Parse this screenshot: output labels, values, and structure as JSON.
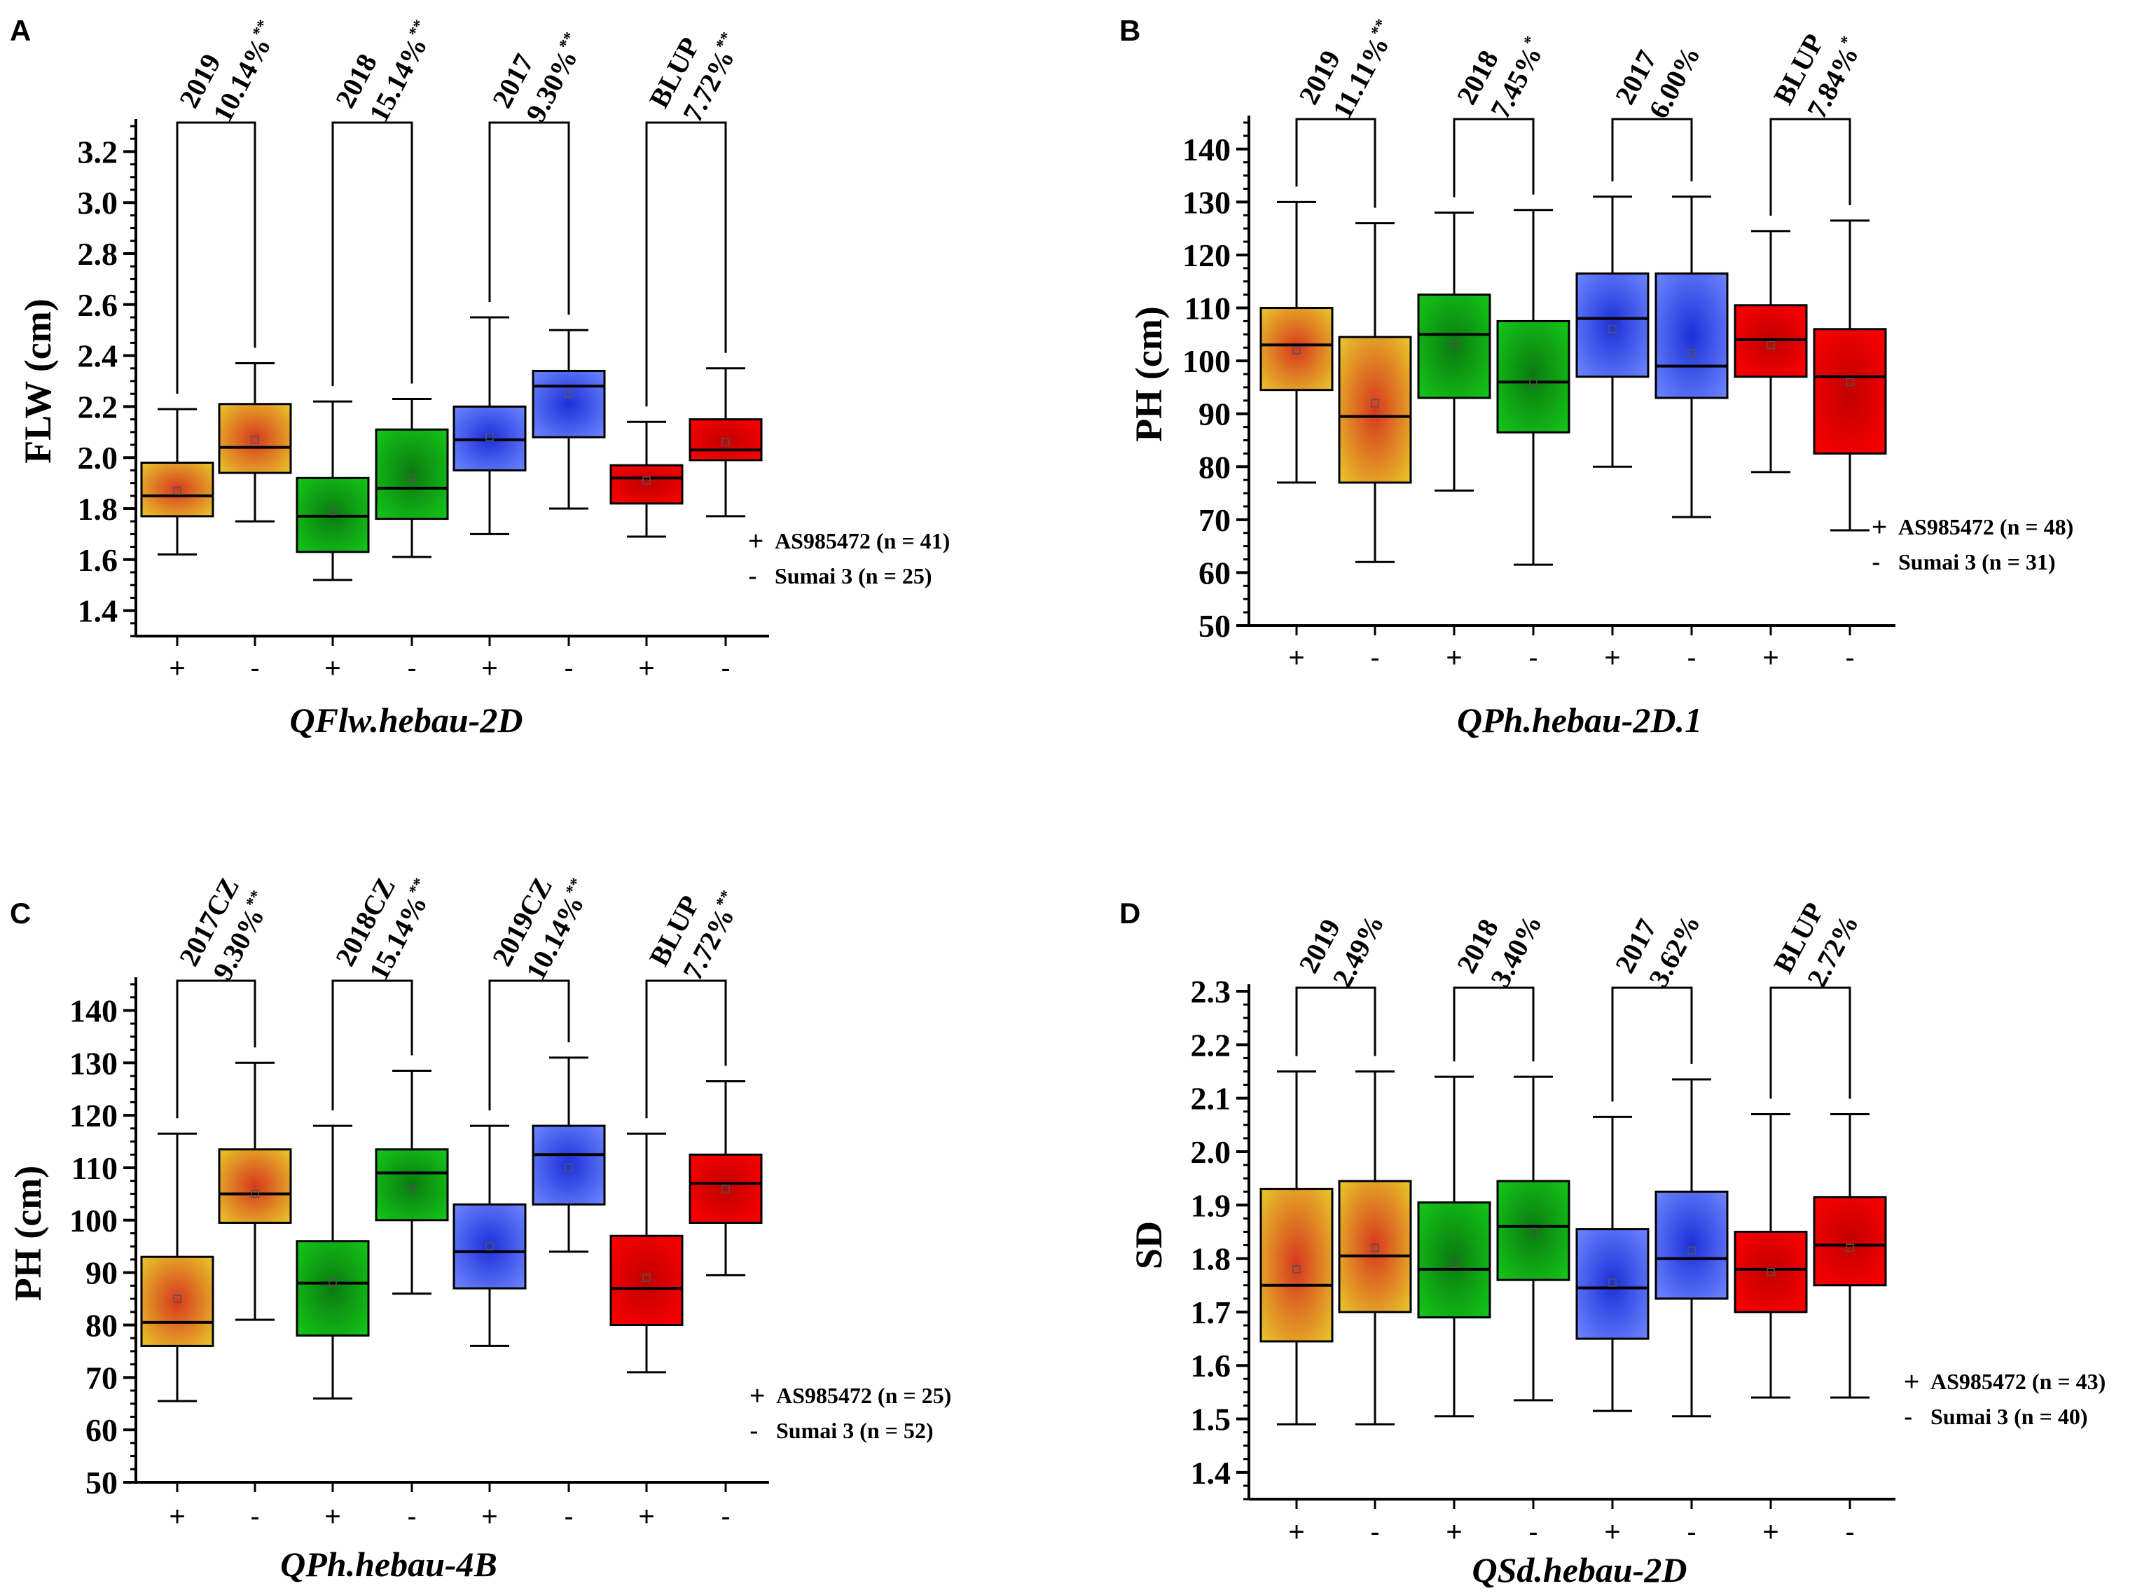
{
  "colors": {
    "yellow_edge": "#e8c92a",
    "yellow_center": "#d7381e",
    "green_edge": "#14c818",
    "green_center": "#0a7a10",
    "blue_edge": "#6f86ff",
    "blue_center": "#1c30d8",
    "red_edge": "#ff0000",
    "red_center": "#c00000"
  },
  "chart_data": [
    {
      "panel": "A",
      "type": "box",
      "ylabel": "FLW (cm)",
      "xlabel": "QFlw.hebau-2D",
      "ylim": [
        1.3,
        3.3
      ],
      "ytick_values": [
        1.4,
        1.6,
        1.8,
        2.0,
        2.2,
        2.4,
        2.6,
        2.8,
        3.0,
        3.2
      ],
      "ytick_labels": [
        "1.4",
        "1.6",
        "1.8",
        "2.0",
        "2.2",
        "2.4",
        "2.6",
        "2.8",
        "3.0",
        "3.2"
      ],
      "minor_step": 0.05,
      "categories": [
        "+",
        "-",
        "+",
        "-",
        "+",
        "-",
        "+",
        "-"
      ],
      "groups": [
        {
          "env": "2019",
          "pct": "10.14%",
          "sig": "**",
          "color": "yellow"
        },
        {
          "env": "2018",
          "pct": "15.14%",
          "sig": "**",
          "color": "green"
        },
        {
          "env": "2017",
          "pct": "9.30%",
          "sig": "**",
          "color": "blue"
        },
        {
          "env": "BLUP",
          "pct": "7.72%",
          "sig": "**",
          "color": "red"
        }
      ],
      "boxes": [
        {
          "min": 1.62,
          "q1": 1.77,
          "median": 1.85,
          "q3": 1.98,
          "max": 2.19,
          "mean": 1.87
        },
        {
          "min": 1.75,
          "q1": 1.94,
          "median": 2.04,
          "q3": 2.21,
          "max": 2.37,
          "mean": 2.07
        },
        {
          "min": 1.52,
          "q1": 1.63,
          "median": 1.77,
          "q3": 1.92,
          "max": 2.22,
          "mean": 1.79
        },
        {
          "min": 1.61,
          "q1": 1.76,
          "median": 1.88,
          "q3": 2.11,
          "max": 2.23,
          "mean": 1.92
        },
        {
          "min": 1.7,
          "q1": 1.95,
          "median": 2.07,
          "q3": 2.2,
          "max": 2.55,
          "mean": 2.08
        },
        {
          "min": 1.8,
          "q1": 2.08,
          "median": 2.28,
          "q3": 2.34,
          "max": 2.5,
          "mean": 2.25
        },
        {
          "min": 1.69,
          "q1": 1.82,
          "median": 1.92,
          "q3": 1.97,
          "max": 2.14,
          "mean": 1.91
        },
        {
          "min": 1.77,
          "q1": 1.99,
          "median": 2.03,
          "q3": 2.15,
          "max": 2.35,
          "mean": 2.06
        }
      ],
      "legend": [
        {
          "symbol": "+",
          "label": "AS985472 (n = 41)"
        },
        {
          "symbol": "-",
          "label": "Sumai 3 (n = 25)"
        }
      ]
    },
    {
      "panel": "B",
      "type": "box",
      "ylabel": "PH (cm)",
      "xlabel": "QPh.hebau-2D.1",
      "ylim": [
        50,
        145
      ],
      "ytick_values": [
        50,
        60,
        70,
        80,
        90,
        100,
        110,
        120,
        130,
        140
      ],
      "ytick_labels": [
        "50",
        "60",
        "70",
        "80",
        "90",
        "100",
        "110",
        "120",
        "130",
        "140"
      ],
      "minor_step": 2.5,
      "categories": [
        "+",
        "-",
        "+",
        "-",
        "+",
        "-",
        "+",
        "-"
      ],
      "groups": [
        {
          "env": "2019",
          "pct": "11.11%",
          "sig": "**",
          "color": "yellow"
        },
        {
          "env": "2018",
          "pct": "7.45%",
          "sig": "*",
          "color": "green"
        },
        {
          "env": "2017",
          "pct": "6.00%",
          "sig": "",
          "color": "blue"
        },
        {
          "env": "BLUP",
          "pct": "7.84%",
          "sig": "*",
          "color": "red"
        }
      ],
      "boxes": [
        {
          "min": 77,
          "q1": 94.5,
          "median": 103,
          "q3": 110,
          "max": 130,
          "mean": 102
        },
        {
          "min": 62,
          "q1": 77,
          "median": 89.5,
          "q3": 104.5,
          "max": 126,
          "mean": 92
        },
        {
          "min": 75.5,
          "q1": 93,
          "median": 105,
          "q3": 112.5,
          "max": 128,
          "mean": 103
        },
        {
          "min": 61.5,
          "q1": 86.5,
          "median": 96,
          "q3": 107.5,
          "max": 128.5,
          "mean": 96
        },
        {
          "min": 80,
          "q1": 97,
          "median": 108,
          "q3": 116.5,
          "max": 131,
          "mean": 106
        },
        {
          "min": 70.5,
          "q1": 93,
          "median": 99,
          "q3": 116.5,
          "max": 131,
          "mean": 101.5
        },
        {
          "min": 79,
          "q1": 97,
          "median": 104,
          "q3": 110.5,
          "max": 124.5,
          "mean": 103
        },
        {
          "min": 68,
          "q1": 82.5,
          "median": 97,
          "q3": 106,
          "max": 126.5,
          "mean": 96
        }
      ],
      "legend": [
        {
          "symbol": "+",
          "label": "AS985472 (n = 48)"
        },
        {
          "symbol": "-",
          "label": "Sumai 3 (n = 31)"
        }
      ]
    },
    {
      "panel": "C",
      "type": "box",
      "ylabel": "PH (cm)",
      "xlabel": "QPh.hebau-4B",
      "ylim": [
        50,
        145
      ],
      "ytick_values": [
        50,
        60,
        70,
        80,
        90,
        100,
        110,
        120,
        130,
        140
      ],
      "ytick_labels": [
        "50",
        "60",
        "70",
        "80",
        "90",
        "100",
        "110",
        "120",
        "130",
        "140"
      ],
      "minor_step": 2.5,
      "categories": [
        "+",
        "-",
        "+",
        "-",
        "+",
        "-",
        "+",
        "-"
      ],
      "groups": [
        {
          "env": "2017CZ",
          "pct": "9.30%",
          "sig": "**",
          "color": "yellow"
        },
        {
          "env": "2018CZ",
          "pct": "15.14%",
          "sig": "**",
          "color": "green"
        },
        {
          "env": "2019CZ",
          "pct": "10.14%",
          "sig": "**",
          "color": "blue"
        },
        {
          "env": "BLUP",
          "pct": "7.72%",
          "sig": "**",
          "color": "red"
        }
      ],
      "boxes": [
        {
          "min": 65.5,
          "q1": 76,
          "median": 80.5,
          "q3": 93,
          "max": 116.5,
          "mean": 85
        },
        {
          "min": 81,
          "q1": 99.5,
          "median": 105,
          "q3": 113.5,
          "max": 130,
          "mean": 105
        },
        {
          "min": 66,
          "q1": 78,
          "median": 88,
          "q3": 96,
          "max": 118,
          "mean": 88
        },
        {
          "min": 86,
          "q1": 100,
          "median": 109,
          "q3": 113.5,
          "max": 128.5,
          "mean": 106
        },
        {
          "min": 76,
          "q1": 87,
          "median": 94,
          "q3": 103,
          "max": 118,
          "mean": 95
        },
        {
          "min": 94,
          "q1": 103,
          "median": 112.5,
          "q3": 118,
          "max": 131,
          "mean": 110
        },
        {
          "min": 71,
          "q1": 80,
          "median": 87,
          "q3": 97,
          "max": 116.5,
          "mean": 89
        },
        {
          "min": 89.5,
          "q1": 99.5,
          "median": 107,
          "q3": 112.5,
          "max": 126.5,
          "mean": 106
        }
      ],
      "legend": [
        {
          "symbol": "+",
          "label": "AS985472 (n = 25)"
        },
        {
          "symbol": "-",
          "label": "Sumai 3 (n = 52)"
        }
      ]
    },
    {
      "panel": "D",
      "type": "box",
      "ylabel": "SD",
      "xlabel": "QSd.hebau-2D",
      "ylim": [
        1.35,
        2.3
      ],
      "ytick_values": [
        1.4,
        1.5,
        1.6,
        1.7,
        1.8,
        1.9,
        2.0,
        2.1,
        2.2,
        2.3
      ],
      "ytick_labels": [
        "1.4",
        "1.5",
        "1.6",
        "1.7",
        "1.8",
        "1.9",
        "2.0",
        "2.1",
        "2.2",
        "2.3"
      ],
      "minor_step": 0.025,
      "categories": [
        "+",
        "-",
        "+",
        "-",
        "+",
        "-",
        "+",
        "-"
      ],
      "groups": [
        {
          "env": "2019",
          "pct": "2.49%",
          "sig": "",
          "color": "yellow"
        },
        {
          "env": "2018",
          "pct": "3.40%",
          "sig": "",
          "color": "green"
        },
        {
          "env": "2017",
          "pct": "3.62%",
          "sig": "",
          "color": "blue"
        },
        {
          "env": "BLUP",
          "pct": "2.72%",
          "sig": "",
          "color": "red"
        }
      ],
      "boxes": [
        {
          "min": 1.49,
          "q1": 1.645,
          "median": 1.75,
          "q3": 1.93,
          "max": 2.15,
          "mean": 1.78
        },
        {
          "min": 1.49,
          "q1": 1.7,
          "median": 1.805,
          "q3": 1.945,
          "max": 2.15,
          "mean": 1.82
        },
        {
          "min": 1.505,
          "q1": 1.69,
          "median": 1.78,
          "q3": 1.905,
          "max": 2.14,
          "mean": 1.79
        },
        {
          "min": 1.535,
          "q1": 1.76,
          "median": 1.86,
          "q3": 1.945,
          "max": 2.14,
          "mean": 1.85
        },
        {
          "min": 1.515,
          "q1": 1.65,
          "median": 1.745,
          "q3": 1.855,
          "max": 2.065,
          "mean": 1.755
        },
        {
          "min": 1.505,
          "q1": 1.725,
          "median": 1.8,
          "q3": 1.925,
          "max": 2.135,
          "mean": 1.815
        },
        {
          "min": 1.54,
          "q1": 1.7,
          "median": 1.78,
          "q3": 1.85,
          "max": 2.07,
          "mean": 1.775
        },
        {
          "min": 1.54,
          "q1": 1.75,
          "median": 1.825,
          "q3": 1.915,
          "max": 2.07,
          "mean": 1.82
        }
      ],
      "legend": [
        {
          "symbol": "+",
          "label": "AS985472 (n = 43)"
        },
        {
          "symbol": "-",
          "label": "Sumai 3 (n = 40)"
        }
      ]
    }
  ]
}
